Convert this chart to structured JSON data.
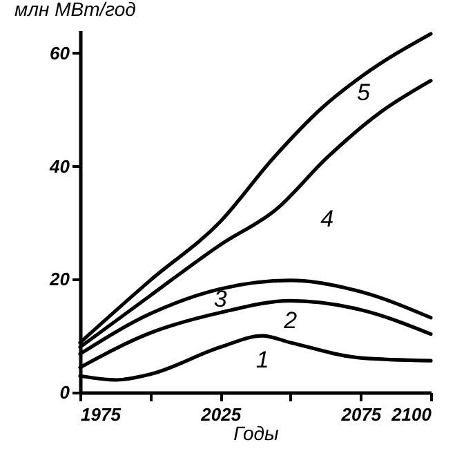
{
  "chart_data": {
    "type": "line",
    "xlabel": "Годы",
    "ylabel": "млн МВт/год",
    "xlim": [
      1975,
      2100
    ],
    "xticks": [
      1975,
      {
        "value": 2000,
        "label": null
      },
      2025,
      {
        "value": 2050,
        "label": null
      },
      2075,
      2100
    ],
    "ylim": [
      0,
      64
    ],
    "yticks": [
      0,
      20,
      40,
      60
    ],
    "grid": false,
    "line_style": "solid",
    "marker": "none",
    "series": [
      {
        "name": "1",
        "color": "#000000",
        "x": [
          1975,
          1988,
          2000,
          2025,
          2040,
          2050,
          2075,
          2100
        ],
        "values": [
          2.9,
          2.2,
          3.2,
          8,
          10,
          8.8,
          6.1,
          5.6
        ]
      },
      {
        "name": "2",
        "color": "#000000",
        "x": [
          1975,
          2000,
          2025,
          2050,
          2075,
          2100
        ],
        "values": [
          4.4,
          10.5,
          14.1,
          16.2,
          14.6,
          10.3
        ]
      },
      {
        "name": "3",
        "color": "#000000",
        "x": [
          1975,
          2000,
          2025,
          2050,
          2075,
          2100
        ],
        "values": [
          6.8,
          13.9,
          18.3,
          19.8,
          17.8,
          13.2
        ]
      },
      {
        "name": "4",
        "color": "#000000",
        "x": [
          1975,
          2000,
          2025,
          2045,
          2063,
          2082,
          2100
        ],
        "values": [
          8,
          17.1,
          26.1,
          32.4,
          41.5,
          49.5,
          55.1
        ]
      },
      {
        "name": "5",
        "color": "#000000",
        "x": [
          1975,
          2000,
          2025,
          2044,
          2061,
          2076,
          2100
        ],
        "values": [
          8.8,
          19.8,
          30.2,
          41.5,
          50.2,
          56.1,
          63.4
        ]
      }
    ]
  }
}
